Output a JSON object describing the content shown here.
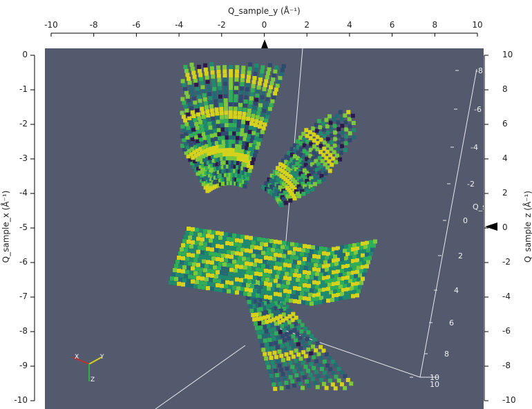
{
  "top_axis": {
    "title": "Q_sample_y (Å⁻¹)",
    "ticks": [
      "-10",
      "-8",
      "-6",
      "-4",
      "-2",
      "0",
      "2",
      "4",
      "6",
      "8",
      "10"
    ]
  },
  "left_axis": {
    "title": "Q_sample_x (Å⁻¹)",
    "ticks": [
      "0",
      "-1",
      "-2",
      "-3",
      "-4",
      "-5",
      "-6",
      "-7",
      "-8",
      "-9",
      "-10"
    ]
  },
  "right_axis": {
    "title": "Q_sample_z (Å⁻¹)",
    "ticks": [
      "10",
      "8",
      "6",
      "4",
      "2",
      "0",
      "-2",
      "-4",
      "-6",
      "-8",
      "-10"
    ]
  },
  "viewport": {
    "background": "#535a6e",
    "inner_axis_labels": [
      "-8",
      "-6",
      "-4",
      "-2",
      "0",
      "2",
      "4",
      "6",
      "8",
      "10",
      "10"
    ],
    "inner_axis_title": "Q_s",
    "orientation_axes": [
      "X",
      "Y",
      "Z"
    ]
  },
  "colors": {
    "viridis": [
      "#2c1a4a",
      "#2f4a6e",
      "#226a74",
      "#1e8a6e",
      "#2fae5a",
      "#7bc93c",
      "#d5d21c"
    ]
  }
}
